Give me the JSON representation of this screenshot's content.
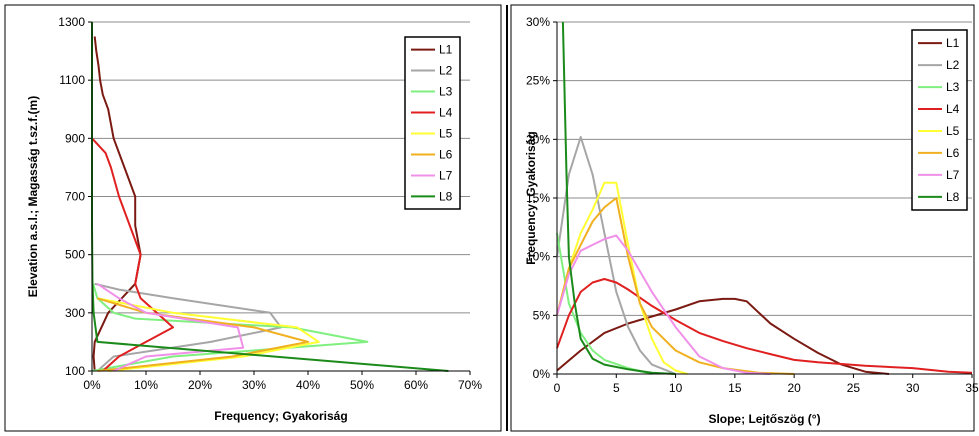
{
  "chart_data": [
    {
      "type": "line",
      "xlabel": "Frequency; Gyakoriság",
      "ylabel": "Elevation a.s.l.; Magasság t.sz.f.(m)",
      "xlim": [
        0,
        70
      ],
      "ylim": [
        100,
        1300
      ],
      "x_ticks": [
        "0%",
        "10%",
        "20%",
        "30%",
        "40%",
        "50%",
        "60%",
        "70%"
      ],
      "y_ticks": [
        "100",
        "300",
        "500",
        "700",
        "900",
        "1100",
        "1300"
      ],
      "grid": "horizontal",
      "legend": "top-right",
      "series": [
        {
          "name": "L1",
          "color": "#7b1a12",
          "points": [
            [
              0.5,
              100
            ],
            [
              0.3,
              150
            ],
            [
              0.5,
              200
            ],
            [
              3,
              300
            ],
            [
              8,
              400
            ],
            [
              9,
              500
            ],
            [
              8,
              600
            ],
            [
              8,
              700
            ],
            [
              6,
              800
            ],
            [
              4,
              900
            ],
            [
              3,
              1000
            ],
            [
              2,
              1050
            ],
            [
              1.5,
              1100
            ],
            [
              1.2,
              1150
            ],
            [
              0.8,
              1200
            ],
            [
              0.5,
              1250
            ]
          ]
        },
        {
          "name": "L2",
          "color": "#a6a6a6",
          "points": [
            [
              1,
              100
            ],
            [
              4,
              150
            ],
            [
              22,
              200
            ],
            [
              35,
              250
            ],
            [
              33,
              300
            ],
            [
              15,
              350
            ],
            [
              5,
              380
            ],
            [
              0.5,
              400
            ]
          ]
        },
        {
          "name": "L3",
          "color": "#7ff07f",
          "points": [
            [
              0,
              100
            ],
            [
              15,
              150
            ],
            [
              51,
              200
            ],
            [
              37,
              250
            ],
            [
              8,
              280
            ],
            [
              4,
              300
            ],
            [
              1,
              350
            ],
            [
              0.2,
              400
            ]
          ]
        },
        {
          "name": "L4",
          "color": "#e02020",
          "points": [
            [
              2,
              100
            ],
            [
              5,
              150
            ],
            [
              10,
              200
            ],
            [
              15,
              250
            ],
            [
              12,
              300
            ],
            [
              9,
              350
            ],
            [
              8,
              400
            ],
            [
              9,
              500
            ],
            [
              7,
              600
            ],
            [
              5,
              700
            ],
            [
              3.5,
              800
            ],
            [
              2.5,
              850
            ],
            [
              0,
              900
            ]
          ]
        },
        {
          "name": "L5",
          "color": "#ffff33",
          "points": [
            [
              3,
              100
            ],
            [
              28,
              150
            ],
            [
              42,
              200
            ],
            [
              38,
              250
            ],
            [
              15,
              300
            ],
            [
              1,
              350
            ]
          ]
        },
        {
          "name": "L6",
          "color": "#f0b020",
          "points": [
            [
              1,
              100
            ],
            [
              26,
              150
            ],
            [
              40,
              200
            ],
            [
              30,
              250
            ],
            [
              10,
              300
            ],
            [
              1,
              350
            ]
          ]
        },
        {
          "name": "L7",
          "color": "#f090e8",
          "points": [
            [
              4,
              100
            ],
            [
              10,
              150
            ],
            [
              28,
              180
            ],
            [
              27,
              250
            ],
            [
              10,
              300
            ],
            [
              5,
              350
            ],
            [
              1,
              400
            ]
          ]
        },
        {
          "name": "L8",
          "color": "#1a8a1a",
          "points": [
            [
              66,
              100
            ],
            [
              1,
              200
            ],
            [
              0.3,
              300
            ],
            [
              0.1,
              400
            ],
            [
              0,
              600
            ],
            [
              0,
              1300
            ]
          ]
        }
      ]
    },
    {
      "type": "line",
      "xlabel": "Slope; Lejtőszög (°)",
      "ylabel": "Frequency; Gyakoriság",
      "xlim": [
        0,
        35
      ],
      "ylim": [
        0,
        30
      ],
      "x_ticks": [
        "0",
        "5",
        "10",
        "15",
        "20",
        "25",
        "30",
        "35"
      ],
      "y_ticks": [
        "0%",
        "5%",
        "10%",
        "15%",
        "20%",
        "25%",
        "30%"
      ],
      "grid": "horizontal",
      "legend": "top-right",
      "series": [
        {
          "name": "L1",
          "color": "#7b1a12",
          "points": [
            [
              0,
              0.3
            ],
            [
              2,
              2
            ],
            [
              4,
              3.5
            ],
            [
              6,
              4.3
            ],
            [
              8,
              4.9
            ],
            [
              10,
              5.5
            ],
            [
              12,
              6.2
            ],
            [
              14,
              6.4
            ],
            [
              15,
              6.4
            ],
            [
              16,
              6.2
            ],
            [
              18,
              4.3
            ],
            [
              20,
              3
            ],
            [
              22,
              1.8
            ],
            [
              24,
              0.8
            ],
            [
              26,
              0.2
            ],
            [
              28,
              0
            ]
          ]
        },
        {
          "name": "L2",
          "color": "#a6a6a6",
          "points": [
            [
              0,
              10
            ],
            [
              1,
              17
            ],
            [
              2,
              20.2
            ],
            [
              3,
              17
            ],
            [
              4,
              12
            ],
            [
              5,
              7
            ],
            [
              6,
              4
            ],
            [
              7,
              2
            ],
            [
              8,
              0.8
            ],
            [
              10,
              0
            ]
          ]
        },
        {
          "name": "L3",
          "color": "#7ff07f",
          "points": [
            [
              0,
              12
            ],
            [
              1,
              6
            ],
            [
              2,
              3.5
            ],
            [
              3,
              2
            ],
            [
              4,
              1.2
            ],
            [
              6,
              0.5
            ],
            [
              8,
              0
            ]
          ]
        },
        {
          "name": "L4",
          "color": "#e02020",
          "points": [
            [
              0,
              2.2
            ],
            [
              1,
              5
            ],
            [
              2,
              7
            ],
            [
              3,
              7.8
            ],
            [
              4,
              8.1
            ],
            [
              5,
              7.8
            ],
            [
              6,
              7.2
            ],
            [
              8,
              5.8
            ],
            [
              10,
              4.6
            ],
            [
              12,
              3.5
            ],
            [
              14,
              2.8
            ],
            [
              16,
              2.2
            ],
            [
              18,
              1.7
            ],
            [
              20,
              1.2
            ],
            [
              22,
              1
            ],
            [
              26,
              0.7
            ],
            [
              30,
              0.5
            ],
            [
              33,
              0.2
            ],
            [
              35,
              0.1
            ]
          ]
        },
        {
          "name": "L5",
          "color": "#ffff33",
          "points": [
            [
              0,
              5
            ],
            [
              1,
              9
            ],
            [
              2,
              12
            ],
            [
              3,
              14
            ],
            [
              4,
              16.3
            ],
            [
              5,
              16.3
            ],
            [
              6,
              11
            ],
            [
              7,
              6
            ],
            [
              8,
              3
            ],
            [
              9,
              1
            ],
            [
              10,
              0.3
            ],
            [
              11,
              0
            ]
          ]
        },
        {
          "name": "L6",
          "color": "#f0b020",
          "points": [
            [
              0,
              5
            ],
            [
              1,
              9
            ],
            [
              2,
              11
            ],
            [
              3,
              13
            ],
            [
              4,
              14.2
            ],
            [
              5,
              15
            ],
            [
              6,
              10
            ],
            [
              7,
              6
            ],
            [
              8,
              4
            ],
            [
              10,
              2
            ],
            [
              12,
              1
            ],
            [
              14,
              0.5
            ],
            [
              17,
              0.1
            ],
            [
              20,
              0
            ]
          ]
        },
        {
          "name": "L7",
          "color": "#f090e8",
          "points": [
            [
              0,
              5
            ],
            [
              1,
              8.5
            ],
            [
              2,
              10.5
            ],
            [
              3,
              11
            ],
            [
              4,
              11.5
            ],
            [
              5,
              11.8
            ],
            [
              6,
              10.5
            ],
            [
              8,
              7
            ],
            [
              10,
              4
            ],
            [
              12,
              1.5
            ],
            [
              14,
              0.5
            ],
            [
              16,
              0.1
            ],
            [
              18,
              0
            ]
          ]
        },
        {
          "name": "L8",
          "color": "#1a8a1a",
          "points": [
            [
              0.5,
              30
            ],
            [
              0.8,
              17
            ],
            [
              1,
              10
            ],
            [
              1.5,
              6
            ],
            [
              2,
              3
            ],
            [
              3,
              1.3
            ],
            [
              4,
              0.8
            ],
            [
              6,
              0.4
            ],
            [
              8,
              0.1
            ],
            [
              10,
              0
            ]
          ]
        }
      ]
    }
  ]
}
